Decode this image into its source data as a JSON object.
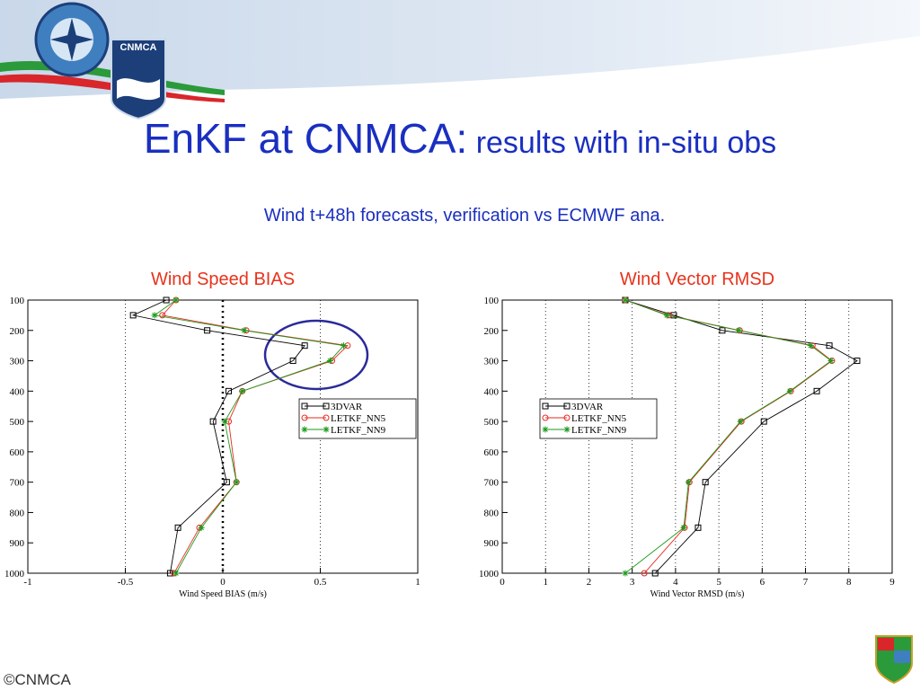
{
  "slide": {
    "logo_text": "CNMCA",
    "title_main": "EnKF at CNMCA:",
    "title_rest": " results with in-situ obs",
    "subtitle": "Wind t+48h forecasts, verification vs ECMWF ana.",
    "footer": "©CNMCA"
  },
  "chart_data": [
    {
      "type": "line",
      "title": "Wind Speed BIAS",
      "x_label": "Wind Speed BIAS (m/s)",
      "y": [
        100,
        150,
        200,
        250,
        300,
        400,
        500,
        700,
        850,
        1000
      ],
      "series": [
        {
          "name": "3DVAR",
          "color": "#000000",
          "marker": "square",
          "values": [
            -0.29,
            -0.46,
            -0.08,
            0.42,
            0.36,
            0.03,
            -0.05,
            0.02,
            -0.23,
            -0.27
          ]
        },
        {
          "name": "LETKF_NN5",
          "color": "#e8281e",
          "marker": "circle",
          "values": [
            -0.24,
            -0.31,
            0.12,
            0.64,
            0.56,
            0.1,
            0.03,
            0.07,
            -0.12,
            -0.25
          ]
        },
        {
          "name": "LETKF_NN9",
          "color": "#1a9a1a",
          "marker": "star",
          "values": [
            -0.24,
            -0.35,
            0.11,
            0.62,
            0.55,
            0.1,
            0.01,
            0.07,
            -0.11,
            -0.24
          ]
        }
      ],
      "xlim": [
        -1,
        1
      ],
      "xticks": [
        -1,
        -0.5,
        0,
        0.5,
        1
      ],
      "ylim": [
        1000,
        100
      ],
      "yticks": [
        100,
        200,
        300,
        400,
        500,
        600,
        700,
        800,
        900,
        1000
      ],
      "grid": true,
      "zero_line": true,
      "legend": "center right"
    },
    {
      "type": "line",
      "title": "Wind Vector RMSD",
      "x_label": "Wind Vector RMSD (m/s)",
      "y": [
        100,
        150,
        200,
        250,
        300,
        400,
        500,
        700,
        850,
        1000
      ],
      "series": [
        {
          "name": "3DVAR",
          "color": "#000000",
          "marker": "square",
          "values": [
            2.84,
            3.96,
            5.08,
            7.55,
            8.19,
            7.26,
            6.04,
            4.69,
            4.52,
            3.53
          ]
        },
        {
          "name": "LETKF_NN5",
          "color": "#e8281e",
          "marker": "circle",
          "values": [
            2.84,
            3.84,
            5.48,
            7.16,
            7.61,
            6.66,
            5.52,
            4.32,
            4.21,
            3.28
          ]
        },
        {
          "name": "LETKF_NN9",
          "color": "#1a9a1a",
          "marker": "star",
          "values": [
            2.84,
            3.8,
            5.46,
            7.12,
            7.59,
            6.64,
            5.5,
            4.3,
            4.19,
            2.84
          ]
        }
      ],
      "xlim": [
        0,
        9
      ],
      "xticks": [
        0,
        1,
        2,
        3,
        4,
        5,
        6,
        7,
        8,
        9
      ],
      "ylim": [
        1000,
        100
      ],
      "yticks": [
        100,
        200,
        300,
        400,
        500,
        600,
        700,
        800,
        900,
        1000
      ],
      "grid": true,
      "zero_line": false,
      "legend": "center left"
    }
  ]
}
